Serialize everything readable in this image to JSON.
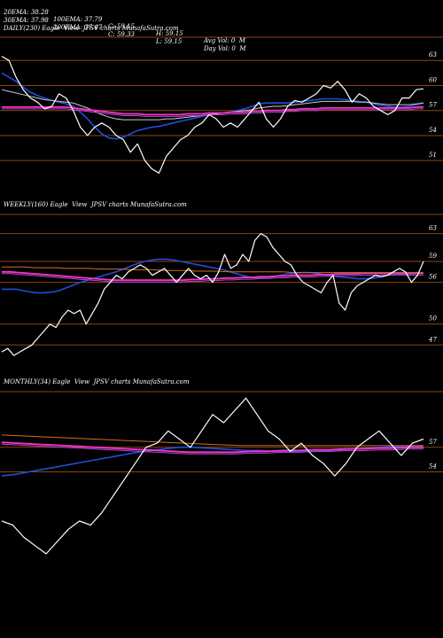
{
  "header": {
    "row1": [
      "20EMA: 38.28",
      "100EMA: 37.79",
      "C: 59.15",
      "H: 59.15",
      "Avg Vol: 0  M"
    ],
    "row2": [
      "30EMA: 37.98",
      "200EMA: 37.47",
      "C: 59.33",
      "L: 59.15",
      "Day Vol: 0  M"
    ]
  },
  "colors": {
    "background": "#000000",
    "price": "#ffffff",
    "grid": "#8b4513",
    "ema_blue": "#1e4fd8",
    "ema_pink": "#ff33cc",
    "ema_purple": "#b04ad0",
    "ema_orange": "#d07020",
    "ema_white": "#cccccc"
  },
  "chart_data": [
    {
      "type": "line",
      "title": "DAILY(230) Eagle  View  JPSV charts MunafaSutra.com",
      "y_ticks": [
        "63",
        "60",
        "57",
        "54",
        "51"
      ],
      "ylim": [
        49,
        66
      ],
      "series": [
        {
          "role": "price",
          "values": [
            63.5,
            63,
            61,
            59.5,
            58.5,
            58,
            57.2,
            57.5,
            59,
            58.5,
            57,
            55,
            54,
            55,
            55.5,
            55,
            54,
            53.5,
            52,
            53,
            51,
            50,
            49.5,
            51.5,
            52.5,
            53.5,
            54,
            55,
            55.5,
            56.5,
            56,
            55,
            55.5,
            55,
            56,
            57,
            58,
            56,
            55,
            56,
            57.5,
            58.2,
            58,
            58.5,
            59,
            60,
            59.7,
            60.5,
            59.5,
            58,
            59,
            58.5,
            57.5,
            57,
            56.5,
            57,
            58.5,
            58.5,
            59.5,
            59.6
          ]
        },
        {
          "role": "ema_fast",
          "values": [
            61.5,
            61,
            60.5,
            59.8,
            59.2,
            58.8,
            58.5,
            58.2,
            58,
            57.8,
            57.5,
            56.8,
            56,
            55,
            54.2,
            53.7,
            53.6,
            53.8,
            54.2,
            54.6,
            54.8,
            55,
            55.1,
            55.3,
            55.5,
            55.7,
            55.9,
            56.1,
            56.3,
            56.5,
            56.6,
            56.7,
            56.8,
            57,
            57.2,
            57.5,
            57.8,
            57.9,
            57.9,
            57.9,
            57.9,
            58,
            58.1,
            58.2,
            58.3,
            58.4,
            58.4,
            58.4,
            58.3,
            58.2,
            58.1,
            58,
            57.8,
            57.6,
            57.5,
            57.4,
            57.4,
            57.5,
            57.7,
            57.9
          ]
        },
        {
          "role": "ema_mid",
          "values": [
            59.5,
            59.3,
            59.1,
            58.9,
            58.7,
            58.5,
            58.3,
            58.2,
            58.1,
            58,
            57.9,
            57.6,
            57.3,
            56.9,
            56.5,
            56.2,
            56,
            55.9,
            55.9,
            55.9,
            55.9,
            55.9,
            55.9,
            56,
            56,
            56.1,
            56.2,
            56.3,
            56.4,
            56.5,
            56.6,
            56.7,
            56.8,
            56.9,
            57,
            57.1,
            57.3,
            57.4,
            57.5,
            57.5,
            57.6,
            57.7,
            57.8,
            57.9,
            58,
            58.1,
            58.1,
            58.1,
            58.1,
            58.1,
            58,
            58,
            57.9,
            57.8,
            57.7,
            57.7,
            57.7,
            57.7,
            57.8,
            57.9
          ]
        },
        {
          "role": "ema_slow",
          "values": [
            57.4,
            57.4,
            57.4,
            57.4,
            57.4,
            57.4,
            57.4,
            57.4,
            57.4,
            57.4,
            57.3,
            57.2,
            57.1,
            57,
            56.9,
            56.8,
            56.7,
            56.6,
            56.6,
            56.6,
            56.5,
            56.5,
            56.5,
            56.5,
            56.5,
            56.5,
            56.6,
            56.6,
            56.6,
            56.7,
            56.7,
            56.7,
            56.8,
            56.8,
            56.8,
            56.9,
            56.9,
            57,
            57,
            57,
            57.1,
            57.1,
            57.2,
            57.2,
            57.2,
            57.3,
            57.3,
            57.3,
            57.3,
            57.3,
            57.3,
            57.3,
            57.3,
            57.3,
            57.3,
            57.3,
            57.3,
            57.3,
            57.4,
            57.4
          ]
        }
      ]
    },
    {
      "type": "line",
      "title": "WEEKLY(160) Eagle  View  JPSV charts MunafaSutra.com",
      "y_ticks": [
        "63",
        "59",
        "56",
        "50",
        "47"
      ],
      "ylim": [
        45,
        66
      ],
      "series": [
        {
          "role": "price",
          "values": [
            46,
            46.5,
            45.5,
            46,
            46.5,
            47,
            48,
            49,
            50,
            49.5,
            51,
            52,
            51.5,
            52,
            50,
            51.5,
            53,
            55,
            56,
            57,
            56.5,
            57.5,
            58,
            58.5,
            58,
            57,
            57.5,
            58,
            57,
            56,
            57,
            58,
            57,
            56.5,
            57,
            56,
            57.5,
            60,
            58,
            58.5,
            60,
            59,
            62,
            63,
            62.5,
            61,
            60,
            59,
            58.5,
            57,
            56,
            55.5,
            55,
            54.5,
            56,
            57,
            53,
            52,
            54.5,
            55.5,
            56,
            56.5,
            57,
            56.8,
            57,
            57.5,
            58,
            57.5,
            56,
            57,
            59
          ]
        },
        {
          "role": "ema_blue",
          "values": [
            55,
            55,
            55,
            54.8,
            54.6,
            54.5,
            54.5,
            54.6,
            54.8,
            55.2,
            55.6,
            56,
            56.3,
            56.6,
            56.9,
            57.2,
            57.5,
            57.9,
            58.3,
            58.7,
            59,
            59.2,
            59.3,
            59.3,
            59.2,
            59,
            58.8,
            58.6,
            58.4,
            58.2,
            58,
            57.8,
            57.5,
            57.2,
            56.9,
            56.7,
            56.6,
            56.7,
            56.8,
            57,
            57.2,
            57.3,
            57.4,
            57.4,
            57.3,
            57.1,
            57,
            56.8,
            56.7,
            56.6,
            56.5,
            56.5,
            56.6,
            56.8,
            57,
            57.1,
            57.2,
            57.2,
            57.3,
            57.3
          ]
        },
        {
          "role": "ema_pink",
          "values": [
            57.5,
            57.5,
            57.4,
            57.3,
            57.2,
            57.1,
            57,
            56.9,
            56.8,
            56.7,
            56.6,
            56.5,
            56.4,
            56.3,
            56.3,
            56.3,
            56.3,
            56.3,
            56.3,
            56.3,
            56.3,
            56.3,
            56.4,
            56.4,
            56.5,
            56.5,
            56.6,
            56.6,
            56.7,
            56.7,
            56.8,
            56.8,
            56.9,
            56.9,
            57,
            57,
            57,
            57.1,
            57.1,
            57.2,
            57.2,
            57.2,
            57.3,
            57.3,
            57.3,
            57.3,
            57.3,
            57.3,
            57.3,
            57.3
          ]
        },
        {
          "role": "ema_orange",
          "values": [
            58.2,
            58.2,
            58.2,
            58.1,
            58.1,
            58.1,
            58,
            58,
            58,
            57.9,
            57.9,
            57.9,
            57.8,
            57.8,
            57.8,
            57.7,
            57.7,
            57.7,
            57.6,
            57.6,
            57.6,
            57.5,
            57.5,
            57.5,
            57.5,
            57.5,
            57.5,
            57.4,
            57.4,
            57.4,
            57.4,
            57.4,
            57.4,
            57.4,
            57.4,
            57.4,
            57.4,
            57.4,
            57.4,
            57.4
          ]
        }
      ]
    },
    {
      "type": "line",
      "title": "MONTHLY(34) Eagle  View  JPSV charts MunafaSutra.com",
      "y_ticks": [
        "57",
        "54"
      ],
      "ylim": [
        44,
        64
      ],
      "series": [
        {
          "role": "price",
          "values": [
            48,
            47.5,
            46,
            45,
            44,
            45.5,
            47,
            48,
            47.5,
            49,
            51,
            53,
            55,
            57,
            57.5,
            59,
            58,
            57,
            59,
            61,
            60,
            61.5,
            63,
            61,
            59,
            58,
            56.5,
            57.5,
            56,
            55,
            53.5,
            55,
            57,
            58,
            59,
            57.5,
            56,
            57.5,
            58
          ]
        },
        {
          "role": "ema_blue",
          "values": [
            53.5,
            53.7,
            54,
            54.3,
            54.6,
            54.9,
            55.2,
            55.5,
            55.8,
            56.1,
            56.4,
            56.6,
            56.8,
            57,
            57,
            56.9,
            56.8,
            56.7,
            56.6,
            56.6,
            56.5,
            56.5,
            56.5,
            56.5,
            56.6,
            56.7,
            56.8,
            56.9,
            57,
            57.1,
            57.1,
            57.2
          ]
        },
        {
          "role": "ema_pink",
          "values": [
            57.6,
            57.5,
            57.4,
            57.3,
            57.2,
            57.1,
            57,
            56.9,
            56.8,
            56.7,
            56.6,
            56.5,
            56.4,
            56.4,
            56.4,
            56.4,
            56.5,
            56.5,
            56.6,
            56.6,
            56.7,
            56.7,
            56.8,
            56.8,
            56.9,
            56.9,
            57,
            57
          ]
        },
        {
          "role": "ema_orange",
          "values": [
            58.5,
            58.4,
            58.3,
            58.2,
            58.1,
            58,
            57.9,
            57.8,
            57.7,
            57.6,
            57.5,
            57.4,
            57.3,
            57.2,
            57.2,
            57.2,
            57.2,
            57.2,
            57.2,
            57.2,
            57.2,
            57.2,
            57.2,
            57.2
          ]
        }
      ]
    }
  ]
}
